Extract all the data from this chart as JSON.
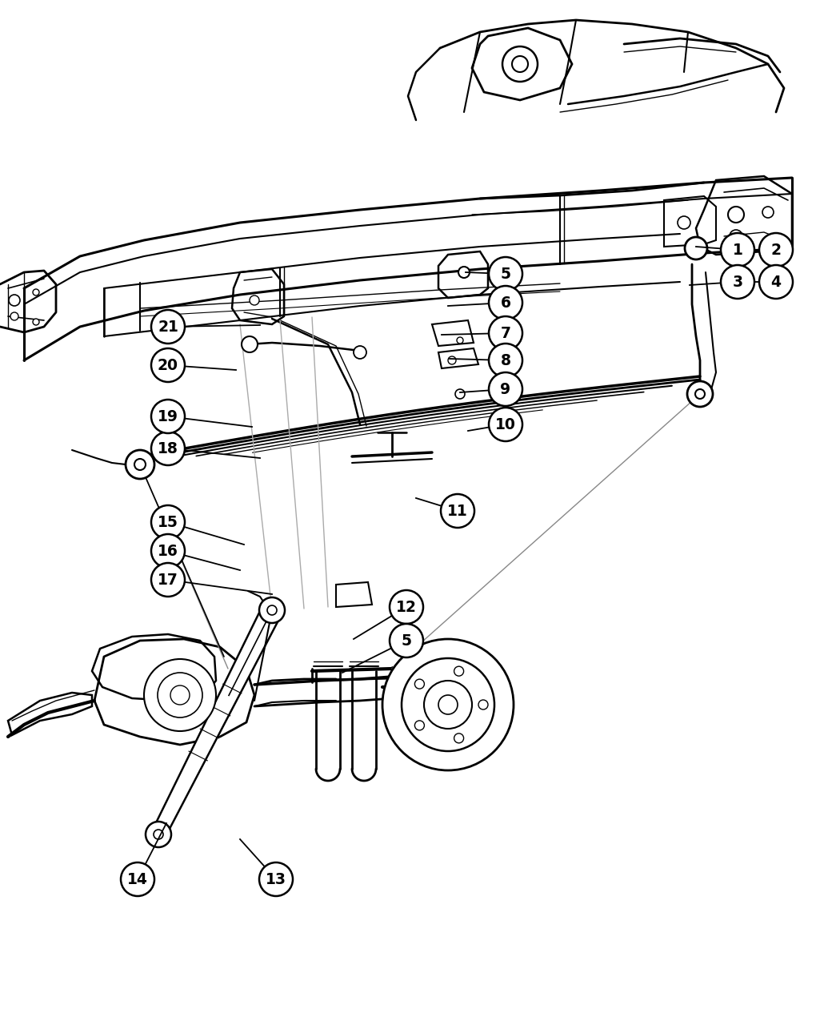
{
  "bg": "#ffffff",
  "lc": "#000000",
  "callouts": [
    [
      "1",
      922,
      312,
      870,
      308
    ],
    [
      "2",
      970,
      312,
      944,
      312
    ],
    [
      "3",
      922,
      352,
      862,
      356
    ],
    [
      "4",
      970,
      352,
      944,
      352
    ],
    [
      "5",
      632,
      342,
      582,
      340
    ],
    [
      "6",
      632,
      378,
      560,
      382
    ],
    [
      "7",
      632,
      416,
      552,
      418
    ],
    [
      "8",
      632,
      450,
      562,
      448
    ],
    [
      "9",
      632,
      486,
      575,
      490
    ],
    [
      "10",
      632,
      530,
      585,
      538
    ],
    [
      "11",
      572,
      638,
      520,
      622
    ],
    [
      "12",
      508,
      758,
      442,
      798
    ],
    [
      "5",
      508,
      800,
      428,
      840
    ],
    [
      "13",
      345,
      1098,
      300,
      1048
    ],
    [
      "14",
      172,
      1098,
      208,
      1028
    ],
    [
      "15",
      210,
      652,
      305,
      680
    ],
    [
      "16",
      210,
      688,
      300,
      712
    ],
    [
      "17",
      210,
      724,
      340,
      742
    ],
    [
      "18",
      210,
      560,
      325,
      572
    ],
    [
      "19",
      210,
      520,
      315,
      533
    ],
    [
      "20",
      210,
      456,
      295,
      462
    ],
    [
      "21",
      210,
      408,
      325,
      406
    ]
  ],
  "cr": 21,
  "fs": 13.5
}
